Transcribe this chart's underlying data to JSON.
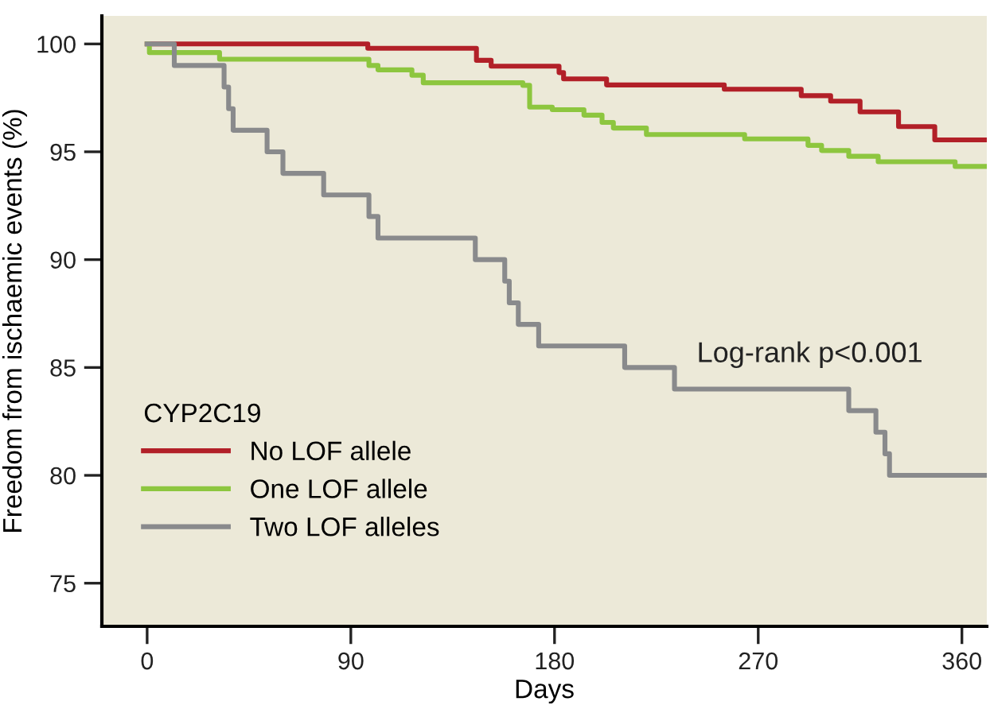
{
  "chart_data": {
    "type": "step",
    "xlabel": "Days",
    "ylabel": "Freedom from ischaemic events (%)",
    "xlim": [
      -20,
      371
    ],
    "ylim": [
      73,
      101.3
    ],
    "xticks": [
      0,
      90,
      180,
      270,
      360
    ],
    "yticks": [
      75,
      80,
      85,
      90,
      95,
      100
    ],
    "grid": false,
    "legend": "bottom left",
    "legend_title": "CYP2C19",
    "line_style": "solid",
    "marker": "none",
    "annotations": [
      "Log-rank p<0.001"
    ],
    "series": [
      {
        "name": "No LOF allele",
        "color": "#b22028",
        "x": [
          0,
          97.5,
          145.5,
          152,
          182,
          184,
          203,
          255,
          289,
          302,
          315,
          332,
          348,
          370
        ],
        "values": [
          100,
          99.8,
          99.24,
          98.97,
          98.67,
          98.38,
          98.1,
          97.9,
          97.6,
          97.35,
          96.85,
          96.17,
          95.55,
          95.55
        ]
      },
      {
        "name": "One LOF allele",
        "color": "#8dc63f",
        "x": [
          0,
          1,
          32,
          98,
          102,
          117,
          122,
          166,
          169,
          179,
          193,
          201,
          206,
          220.6,
          264,
          292,
          298,
          310,
          323,
          357,
          370
        ],
        "values": [
          100,
          99.6,
          99.29,
          99.0,
          98.8,
          98.55,
          98.2,
          98.08,
          97.07,
          96.95,
          96.7,
          96.36,
          96.1,
          95.8,
          95.6,
          95.3,
          95.06,
          94.79,
          94.54,
          94.32,
          94.32
        ]
      },
      {
        "name": "Two LOF alleles",
        "color": "#898a8c",
        "x": [
          0,
          12,
          34,
          36,
          38,
          53,
          60,
          78,
          98,
          102,
          145,
          158,
          160,
          164,
          173,
          211,
          233,
          310,
          322,
          326,
          328,
          370
        ],
        "values": [
          100,
          99,
          98,
          97,
          96,
          95,
          94,
          93,
          92,
          91,
          90,
          89,
          88,
          87,
          86,
          85,
          84,
          83,
          82,
          81,
          80,
          80
        ]
      }
    ]
  }
}
